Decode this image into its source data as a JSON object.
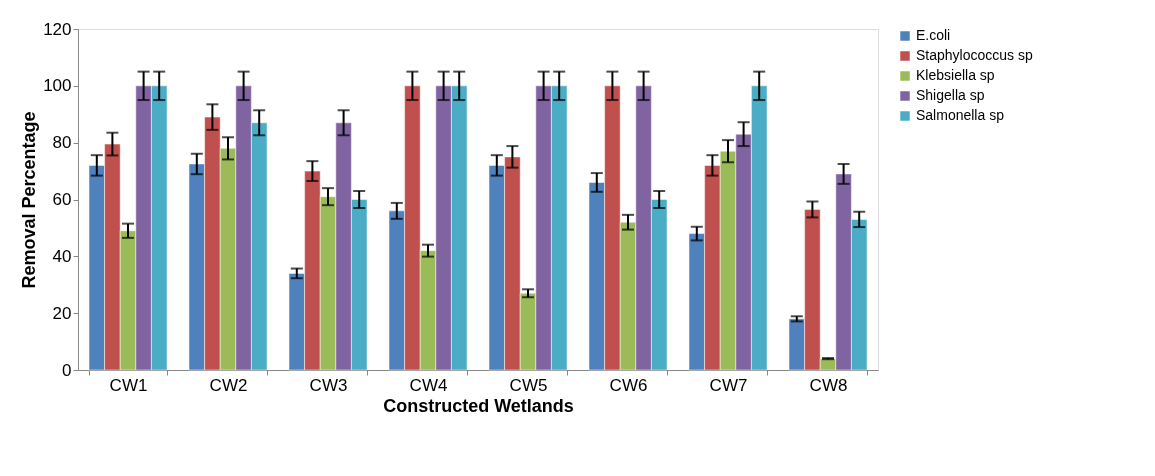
{
  "chart_data": {
    "type": "bar",
    "xlabel": "Constructed Wetlands",
    "ylabel": "Removal Percentage",
    "categories": [
      "CW1",
      "CW2",
      "CW3",
      "CW4",
      "CW5",
      "CW6",
      "CW7",
      "CW8"
    ],
    "series": [
      {
        "name": "E.coli",
        "color": "#4f81bd",
        "values": [
          72,
          72.5,
          34,
          56,
          72,
          66,
          48,
          18
        ],
        "errors": [
          3.6,
          3.6,
          1.7,
          2.8,
          3.6,
          3.3,
          2.4,
          0.9
        ]
      },
      {
        "name": "Staphylococcus sp",
        "color": "#c0504d",
        "values": [
          79.5,
          89,
          70,
          100,
          75,
          100,
          72,
          56.5
        ],
        "errors": [
          4,
          4.5,
          3.5,
          5,
          3.8,
          5,
          3.6,
          2.8
        ]
      },
      {
        "name": "Klebsiella sp",
        "color": "#9bbb59",
        "values": [
          49,
          78,
          61,
          42,
          27,
          52,
          77,
          4
        ],
        "errors": [
          2.5,
          3.9,
          3,
          2.1,
          1.4,
          2.6,
          3.9,
          0.2
        ]
      },
      {
        "name": "Shigella sp",
        "color": "#8064a2",
        "values": [
          100,
          100,
          87,
          100,
          100,
          100,
          83,
          69
        ],
        "errors": [
          5,
          5,
          4.4,
          5,
          5,
          5,
          4.2,
          3.5
        ]
      },
      {
        "name": "Salmonella sp",
        "color": "#4bacc6",
        "values": [
          100,
          87,
          60,
          100,
          100,
          60,
          100,
          53
        ],
        "errors": [
          5,
          4.4,
          3,
          5,
          5,
          3,
          5,
          2.7
        ]
      }
    ],
    "ylim": [
      0,
      120
    ],
    "yticks": [
      0,
      20,
      40,
      60,
      80,
      100,
      120
    ],
    "grid": false,
    "legend": "right"
  }
}
